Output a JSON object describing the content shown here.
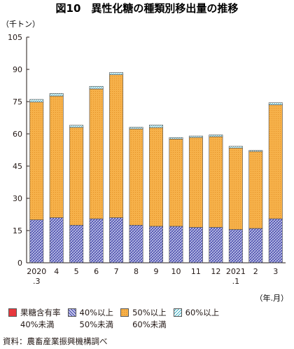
{
  "chart_data": {
    "type": "bar",
    "stacked": true,
    "title": "図10　異性化糖の種類別移出量の推移",
    "unit_label": "（千トン）",
    "period_label": "（年.月）",
    "categories": [
      "2020\n.3",
      "4",
      "5",
      "6",
      "7",
      "8",
      "9",
      "10",
      "11",
      "12",
      "2021\n.1",
      "2",
      "3"
    ],
    "ylim": [
      0,
      105
    ],
    "yticks": [
      0,
      15,
      30,
      45,
      60,
      75,
      90,
      105
    ],
    "series": [
      {
        "name": "果糖含有率\n40%未満",
        "color": "#e8383d",
        "values": [
          0.1,
          0.1,
          0.1,
          0.1,
          0.1,
          0.1,
          0.1,
          0.1,
          0.1,
          0.1,
          0.1,
          0.1,
          0.1
        ]
      },
      {
        "name": "40%以上\n50%未満",
        "color": "#5b5fb8",
        "values": [
          19.9,
          20.9,
          17.4,
          20.4,
          20.9,
          17.4,
          16.9,
          16.9,
          16.4,
          16.4,
          15.4,
          15.9,
          20.4
        ]
      },
      {
        "name": "50%以上\n60%未満",
        "color": "#f7b24c",
        "values": [
          54.8,
          56.6,
          45.5,
          60.4,
          66.5,
          44.8,
          45.9,
          40.6,
          41.8,
          42.2,
          37.9,
          35.8,
          53.0
        ]
      },
      {
        "name": "60%以上",
        "color": "#5bc0cf",
        "values": [
          1.2,
          1.2,
          1.0,
          1.2,
          1.0,
          0.8,
          1.2,
          0.7,
          0.7,
          0.8,
          0.8,
          0.5,
          1.0
        ]
      }
    ],
    "grid": false,
    "legend_position": "bottom"
  },
  "source": "資料：農畜産業振興機構調べ"
}
